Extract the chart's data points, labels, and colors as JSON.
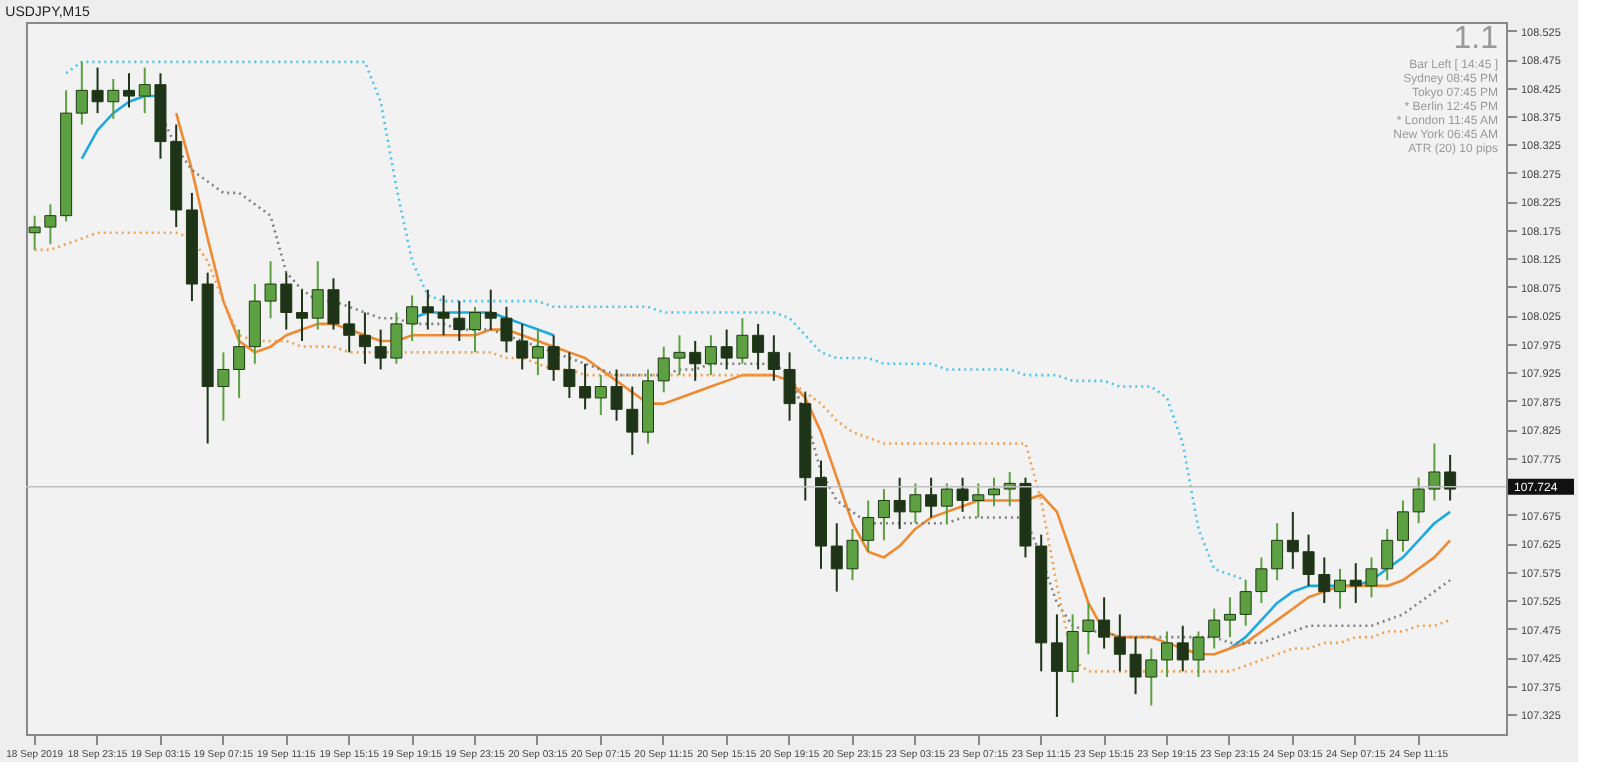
{
  "chart_data": {
    "type": "candlestick",
    "title": "USDJPY,M15",
    "categories": [
      "18 Sep 2019",
      null,
      null,
      null,
      "18 Sep 23:15",
      null,
      null,
      null,
      "19 Sep 03:15",
      null,
      null,
      null,
      "19 Sep 07:15",
      null,
      null,
      null,
      "19 Sep 11:15",
      null,
      null,
      null,
      "19 Sep 15:15",
      null,
      null,
      null,
      "19 Sep 19:15",
      null,
      null,
      null,
      "19 Sep 23:15",
      null,
      null,
      null,
      "20 Sep 03:15",
      null,
      null,
      null,
      "20 Sep 07:15",
      null,
      null,
      null,
      "20 Sep 11:15",
      null,
      null,
      null,
      "20 Sep 15:15",
      null,
      null,
      null,
      "20 Sep 19:15",
      null,
      null,
      null,
      "20 Sep 23:15",
      null,
      null,
      null,
      "23 Sep 03:15",
      null,
      null,
      null,
      "23 Sep 07:15",
      null,
      null,
      null,
      "23 Sep 11:15",
      null,
      null,
      null,
      "23 Sep 15:15",
      null,
      null,
      null,
      "23 Sep 19:15",
      null,
      null,
      null,
      "23 Sep 23:15",
      null,
      null,
      null,
      "24 Sep 03:15",
      null,
      null,
      null,
      "24 Sep 07:15",
      null,
      null,
      null,
      "24 Sep 11:15",
      null,
      null
    ],
    "colors": [
      "#5ca042",
      "#5ca042",
      "#5ca042",
      "#5ca042",
      "#1f3318",
      "#5ca042",
      "#1f3318",
      "#5ca042",
      "#1f3318",
      "#1f3318",
      "#1f3318",
      "#1f3318",
      "#5ca042",
      "#5ca042",
      "#5ca042",
      "#5ca042",
      "#1f3318",
      "#1f3318",
      "#5ca042",
      "#1f3318",
      "#1f3318",
      "#1f3318",
      "#1f3318",
      "#5ca042",
      "#5ca042",
      "#1f3318",
      "#1f3318",
      "#1f3318",
      "#5ca042",
      "#1f3318",
      "#1f3318",
      "#1f3318",
      "#5ca042",
      "#1f3318",
      "#1f3318",
      "#1f3318",
      "#5ca042",
      "#1f3318",
      "#1f3318",
      "#5ca042",
      "#5ca042",
      "#5ca042",
      "#1f3318",
      "#5ca042",
      "#1f3318",
      "#5ca042",
      "#1f3318",
      "#1f3318",
      "#1f3318",
      "#1f3318",
      "#1f3318",
      "#1f3318",
      "#5ca042",
      "#5ca042",
      "#5ca042",
      "#1f3318",
      "#5ca042",
      "#1f3318",
      "#5ca042",
      "#1f3318",
      "#5ca042",
      "#5ca042",
      "#5ca042",
      "#1f3318",
      "#1f3318",
      "#1f3318",
      "#5ca042",
      "#5ca042",
      "#1f3318",
      "#1f3318",
      "#1f3318",
      "#5ca042",
      "#5ca042",
      "#1f3318",
      "#5ca042",
      "#5ca042",
      "#5ca042",
      "#5ca042",
      "#5ca042",
      "#5ca042",
      "#1f3318",
      "#1f3318",
      "#1f3318",
      "#5ca042",
      "#1f3318",
      "#5ca042",
      "#5ca042",
      "#5ca042",
      "#5ca042",
      "#5ca042",
      "#1f3318"
    ],
    "ohlc": [
      [
        108.17,
        108.2,
        108.14,
        108.18
      ],
      [
        108.18,
        108.22,
        108.15,
        108.2
      ],
      [
        108.2,
        108.42,
        108.19,
        108.38
      ],
      [
        108.38,
        108.47,
        108.36,
        108.42
      ],
      [
        108.42,
        108.46,
        108.38,
        108.4
      ],
      [
        108.4,
        108.44,
        108.37,
        108.42
      ],
      [
        108.42,
        108.45,
        108.39,
        108.41
      ],
      [
        108.41,
        108.46,
        108.38,
        108.43
      ],
      [
        108.43,
        108.45,
        108.3,
        108.33
      ],
      [
        108.33,
        108.36,
        108.18,
        108.21
      ],
      [
        108.21,
        108.24,
        108.05,
        108.08
      ],
      [
        108.08,
        108.1,
        107.8,
        107.9
      ],
      [
        107.9,
        107.96,
        107.84,
        107.93
      ],
      [
        107.93,
        108.0,
        107.88,
        107.97
      ],
      [
        107.97,
        108.08,
        107.94,
        108.05
      ],
      [
        108.05,
        108.12,
        108.02,
        108.08
      ],
      [
        108.08,
        108.1,
        108.0,
        108.03
      ],
      [
        108.03,
        108.07,
        107.98,
        108.02
      ],
      [
        108.02,
        108.12,
        108.0,
        108.07
      ],
      [
        108.07,
        108.09,
        108.0,
        108.01
      ],
      [
        108.01,
        108.05,
        107.96,
        107.99
      ],
      [
        107.99,
        108.03,
        107.94,
        107.97
      ],
      [
        107.97,
        108.0,
        107.93,
        107.95
      ],
      [
        107.95,
        108.03,
        107.94,
        108.01
      ],
      [
        108.01,
        108.06,
        107.98,
        108.04
      ],
      [
        108.04,
        108.07,
        108.0,
        108.03
      ],
      [
        108.03,
        108.06,
        107.99,
        108.02
      ],
      [
        108.02,
        108.05,
        107.98,
        108.0
      ],
      [
        108.0,
        108.04,
        107.96,
        108.03
      ],
      [
        108.03,
        108.07,
        108.0,
        108.02
      ],
      [
        108.02,
        108.04,
        107.96,
        107.98
      ],
      [
        107.98,
        108.01,
        107.93,
        107.95
      ],
      [
        107.95,
        108.0,
        107.92,
        107.97
      ],
      [
        107.97,
        107.99,
        107.91,
        107.93
      ],
      [
        107.93,
        107.96,
        107.88,
        107.9
      ],
      [
        107.9,
        107.94,
        107.86,
        107.88
      ],
      [
        107.88,
        107.92,
        107.85,
        107.9
      ],
      [
        107.9,
        107.93,
        107.84,
        107.86
      ],
      [
        107.86,
        107.9,
        107.78,
        107.82
      ],
      [
        107.82,
        107.93,
        107.8,
        107.91
      ],
      [
        107.91,
        107.97,
        107.89,
        107.95
      ],
      [
        107.95,
        107.99,
        107.92,
        107.96
      ],
      [
        107.96,
        107.98,
        107.91,
        107.94
      ],
      [
        107.94,
        107.99,
        107.92,
        107.97
      ],
      [
        107.97,
        108.0,
        107.93,
        107.95
      ],
      [
        107.95,
        108.02,
        107.94,
        107.99
      ],
      [
        107.99,
        108.01,
        107.93,
        107.96
      ],
      [
        107.96,
        107.99,
        107.91,
        107.93
      ],
      [
        107.93,
        107.96,
        107.84,
        107.87
      ],
      [
        107.87,
        107.89,
        107.7,
        107.74
      ],
      [
        107.74,
        107.77,
        107.58,
        107.62
      ],
      [
        107.62,
        107.66,
        107.54,
        107.58
      ],
      [
        107.58,
        107.65,
        107.56,
        107.63
      ],
      [
        107.63,
        107.7,
        107.61,
        107.67
      ],
      [
        107.67,
        107.72,
        107.63,
        107.7
      ],
      [
        107.7,
        107.74,
        107.65,
        107.68
      ],
      [
        107.68,
        107.73,
        107.66,
        107.71
      ],
      [
        107.71,
        107.74,
        107.67,
        107.69
      ],
      [
        107.69,
        107.73,
        107.66,
        107.72
      ],
      [
        107.72,
        107.74,
        107.68,
        107.7
      ],
      [
        107.7,
        107.73,
        107.67,
        107.71
      ],
      [
        107.71,
        107.74,
        107.69,
        107.72
      ],
      [
        107.72,
        107.75,
        107.69,
        107.73
      ],
      [
        107.73,
        107.74,
        107.6,
        107.62
      ],
      [
        107.62,
        107.64,
        107.4,
        107.45
      ],
      [
        107.45,
        107.5,
        107.32,
        107.4
      ],
      [
        107.4,
        107.5,
        107.38,
        107.47
      ],
      [
        107.47,
        107.52,
        107.43,
        107.49
      ],
      [
        107.49,
        107.53,
        107.44,
        107.46
      ],
      [
        107.46,
        107.5,
        107.4,
        107.43
      ],
      [
        107.43,
        107.46,
        107.36,
        107.39
      ],
      [
        107.39,
        107.44,
        107.34,
        107.42
      ],
      [
        107.42,
        107.47,
        107.39,
        107.45
      ],
      [
        107.45,
        107.48,
        107.4,
        107.42
      ],
      [
        107.42,
        107.47,
        107.39,
        107.46
      ],
      [
        107.46,
        107.51,
        107.44,
        107.49
      ],
      [
        107.49,
        107.53,
        107.46,
        107.5
      ],
      [
        107.5,
        107.56,
        107.48,
        107.54
      ],
      [
        107.54,
        107.6,
        107.52,
        107.58
      ],
      [
        107.58,
        107.66,
        107.56,
        107.63
      ],
      [
        107.63,
        107.68,
        107.58,
        107.61
      ],
      [
        107.61,
        107.64,
        107.55,
        107.57
      ],
      [
        107.57,
        107.6,
        107.52,
        107.54
      ],
      [
        107.54,
        107.58,
        107.51,
        107.56
      ],
      [
        107.56,
        107.59,
        107.52,
        107.55
      ],
      [
        107.55,
        107.6,
        107.53,
        107.58
      ],
      [
        107.58,
        107.65,
        107.56,
        107.63
      ],
      [
        107.63,
        107.7,
        107.61,
        107.68
      ],
      [
        107.68,
        107.74,
        107.66,
        107.72
      ],
      [
        107.72,
        107.8,
        107.7,
        107.75
      ],
      [
        107.75,
        107.78,
        107.7,
        107.72
      ]
    ],
    "series": [
      {
        "type": "line",
        "color": "#1fa9e1",
        "line_style": "solid",
        "values": [
          null,
          null,
          null,
          108.3,
          108.35,
          108.38,
          108.4,
          108.41,
          108.41,
          null,
          null,
          null,
          null,
          null,
          null,
          null,
          null,
          null,
          null,
          null,
          null,
          null,
          null,
          null,
          108.02,
          108.03,
          108.03,
          108.03,
          108.03,
          108.03,
          108.02,
          108.01,
          108.0,
          107.99,
          null,
          null,
          null,
          null,
          null,
          null,
          null,
          null,
          null,
          null,
          null,
          null,
          null,
          null,
          null,
          null,
          null,
          null,
          null,
          null,
          null,
          null,
          null,
          null,
          null,
          null,
          null,
          null,
          null,
          null,
          null,
          null,
          null,
          null,
          null,
          null,
          null,
          null,
          null,
          null,
          null,
          null,
          107.44,
          107.46,
          107.49,
          107.52,
          107.54,
          107.55,
          107.55,
          107.55,
          107.55,
          107.56,
          107.58,
          107.6,
          107.63,
          107.66,
          107.68
        ]
      },
      {
        "type": "line",
        "color": "#f08a30",
        "line_style": "solid",
        "values": [
          null,
          null,
          null,
          null,
          null,
          null,
          null,
          null,
          null,
          108.38,
          108.28,
          108.16,
          108.05,
          107.98,
          107.96,
          107.97,
          107.99,
          108.0,
          108.01,
          108.01,
          108.0,
          107.99,
          107.98,
          107.98,
          107.99,
          107.99,
          107.99,
          107.99,
          107.99,
          108.0,
          108.0,
          107.99,
          107.98,
          107.97,
          107.96,
          107.95,
          107.93,
          107.91,
          107.89,
          107.87,
          107.87,
          107.88,
          107.89,
          107.9,
          107.91,
          107.92,
          107.92,
          107.92,
          107.91,
          107.88,
          107.82,
          107.74,
          107.66,
          107.61,
          107.6,
          107.62,
          107.65,
          107.67,
          107.68,
          107.69,
          107.7,
          107.7,
          107.7,
          107.7,
          107.71,
          107.68,
          107.6,
          107.52,
          107.47,
          107.46,
          107.46,
          107.46,
          107.45,
          107.44,
          107.43,
          107.43,
          107.44,
          107.45,
          107.47,
          107.49,
          107.51,
          107.53,
          107.54,
          107.55,
          107.55,
          107.55,
          107.55,
          107.56,
          107.58,
          107.6,
          107.63
        ]
      },
      {
        "type": "line",
        "color": "#4cc3f0",
        "line_style": "dotted",
        "values": [
          null,
          null,
          108.45,
          108.47,
          108.47,
          108.47,
          108.47,
          108.47,
          108.47,
          108.47,
          108.47,
          108.47,
          108.47,
          108.47,
          108.47,
          108.47,
          108.47,
          108.47,
          108.47,
          108.47,
          108.47,
          108.47,
          108.4,
          108.25,
          108.12,
          108.06,
          108.05,
          108.05,
          108.05,
          108.05,
          108.05,
          108.05,
          108.05,
          108.04,
          108.04,
          108.04,
          108.04,
          108.04,
          108.04,
          108.04,
          108.03,
          108.03,
          108.03,
          108.03,
          108.03,
          108.03,
          108.03,
          108.03,
          108.02,
          107.99,
          107.96,
          107.95,
          107.95,
          107.95,
          107.94,
          107.94,
          107.94,
          107.94,
          107.93,
          107.93,
          107.93,
          107.93,
          107.93,
          107.92,
          107.92,
          107.92,
          107.91,
          107.91,
          107.91,
          107.9,
          107.9,
          107.9,
          107.88,
          107.8,
          107.65,
          107.58,
          107.57,
          107.56,
          null,
          null,
          null,
          null,
          null,
          null,
          null,
          null,
          null,
          null,
          null,
          null,
          null
        ]
      },
      {
        "type": "line",
        "color": "#808080",
        "line_style": "dotted",
        "values": [
          null,
          null,
          null,
          null,
          null,
          null,
          null,
          null,
          108.38,
          108.32,
          108.28,
          108.26,
          108.24,
          108.24,
          108.22,
          108.2,
          108.1,
          108.07,
          108.05,
          108.05,
          108.04,
          108.03,
          108.02,
          108.02,
          108.01,
          108.01,
          108.01,
          108.0,
          108.0,
          108.0,
          107.99,
          107.98,
          107.97,
          107.96,
          107.95,
          107.94,
          107.93,
          107.92,
          107.92,
          107.92,
          107.92,
          107.93,
          107.93,
          107.94,
          107.94,
          107.94,
          107.94,
          107.94,
          107.92,
          107.85,
          107.75,
          107.7,
          107.68,
          107.66,
          107.66,
          107.66,
          107.66,
          107.66,
          107.66,
          107.67,
          107.67,
          107.67,
          107.67,
          107.67,
          107.6,
          107.52,
          107.48,
          107.47,
          107.47,
          107.46,
          107.46,
          107.46,
          107.46,
          107.46,
          107.46,
          107.46,
          107.45,
          107.45,
          107.45,
          107.46,
          107.47,
          107.48,
          107.48,
          107.48,
          107.48,
          107.48,
          107.49,
          107.5,
          107.52,
          107.54,
          107.56
        ]
      },
      {
        "type": "line",
        "color": "#f0a050",
        "line_style": "dotted",
        "values": [
          108.14,
          108.14,
          108.15,
          108.16,
          108.17,
          108.17,
          108.17,
          108.17,
          108.17,
          108.17,
          108.16,
          108.12,
          108.05,
          107.99,
          107.98,
          107.98,
          107.98,
          107.97,
          107.97,
          107.97,
          107.96,
          107.96,
          107.96,
          107.96,
          107.96,
          107.96,
          107.96,
          107.96,
          107.96,
          107.96,
          107.95,
          107.95,
          107.94,
          107.93,
          107.93,
          107.92,
          107.92,
          107.92,
          107.92,
          107.92,
          107.92,
          107.92,
          107.92,
          107.92,
          107.92,
          107.92,
          107.92,
          107.92,
          107.91,
          107.89,
          107.87,
          107.84,
          107.82,
          107.81,
          107.8,
          107.8,
          107.8,
          107.8,
          107.8,
          107.8,
          107.8,
          107.8,
          107.8,
          107.8,
          107.7,
          107.55,
          107.42,
          107.4,
          107.4,
          107.4,
          107.4,
          107.4,
          107.4,
          107.4,
          107.4,
          107.4,
          107.4,
          107.41,
          107.42,
          107.43,
          107.44,
          107.44,
          107.45,
          107.45,
          107.46,
          107.46,
          107.47,
          107.47,
          107.48,
          107.48,
          107.49
        ]
      }
    ],
    "ylim": [
      107.29,
      108.54
    ],
    "yticks": [
      107.325,
      107.375,
      107.425,
      107.475,
      107.525,
      107.575,
      107.625,
      107.675,
      107.775,
      107.825,
      107.875,
      107.925,
      107.975,
      108.025,
      108.075,
      108.125,
      108.175,
      108.225,
      108.275,
      108.325,
      108.375,
      108.425,
      108.475,
      108.525
    ],
    "ref_lines": [
      {
        "axis": "y",
        "value": 107.724,
        "label": "107.724",
        "color": "#c0c0c0"
      }
    ],
    "grid": false,
    "annotations": [
      "1.1",
      "Bar Left  [ 14:45 ]",
      "Sydney  08:45 PM",
      "Tokyo  07:45 PM",
      "* Berlin  12:45 PM",
      "* London  11:45 AM",
      "New York  06:45 AM",
      "ATR (20)  10 pips"
    ]
  }
}
